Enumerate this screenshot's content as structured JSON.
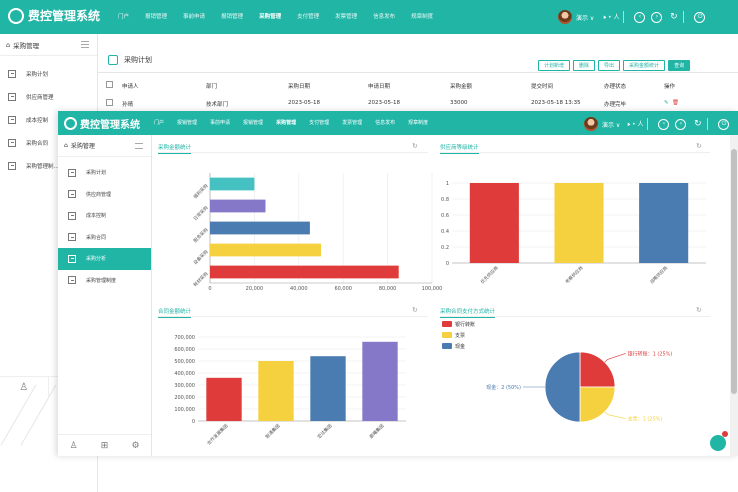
{
  "app": {
    "title": "费控管理系统"
  },
  "nav": [
    "门户",
    "报销管理",
    "事前申请",
    "报销管理",
    "采购管理",
    "支付管理",
    "发票管理",
    "信息发布",
    "规章制度"
  ],
  "nav_active_index": 4,
  "user": {
    "name": "演示",
    "text": "演示 ∨",
    "speaker": "🕩 • 人"
  },
  "bg": {
    "sidebar_head": "采购管理",
    "sidebar_items": [
      "采购计划",
      "供应商管理",
      "成本控制",
      "采购合同",
      "采购管理制..."
    ],
    "page_title": "采购计划",
    "toolbar": [
      "计划新增",
      "删除",
      "导出",
      "采购金额统计",
      "查询"
    ],
    "table_headers": [
      "申请人",
      "部门",
      "采购日期",
      "申请日期",
      "采购金额",
      "提交时间",
      "办理状态",
      "操作"
    ],
    "row": [
      "孙晴",
      "技术部门",
      "2023-05-18",
      "2023-05-18",
      "33000",
      "2023-05-18 13:35",
      "办理完毕"
    ]
  },
  "fg": {
    "sidebar_head": "采购管理",
    "sidebar_items": [
      "采购计划",
      "供应商管理",
      "成本控制",
      "采购合同",
      "采购分析",
      "采购管理制度"
    ],
    "sidebar_active_index": 4,
    "panels": [
      "采购金额统计",
      "供应商等级统计",
      "合同金额统计",
      "采购合同支付方式统计"
    ]
  },
  "colors": {
    "accent": "#21b5a6",
    "red": "#e03b3b",
    "yellow": "#f6d13f",
    "blue": "#4a7cb2",
    "purple": "#8678c8",
    "teal": "#46c1c1"
  },
  "chart_data": [
    {
      "type": "bar",
      "orientation": "horizontal",
      "title": "采购金额统计",
      "categories": [
        "耗材采购",
        "设备采购",
        "服务采购",
        "日常采购",
        "福利采购"
      ],
      "values": [
        85000,
        50000,
        45000,
        25000,
        20000
      ],
      "colors": [
        "#e03b3b",
        "#f6d13f",
        "#4a7cb2",
        "#8678c8",
        "#46c1c1"
      ],
      "xlim": [
        0,
        100000
      ],
      "xticks": [
        "0",
        "20,000",
        "40,000",
        "60,000",
        "80,000",
        "100,000"
      ]
    },
    {
      "type": "bar",
      "title": "供应商等级统计",
      "categories": [
        "优先供应商",
        "考察供应商",
        "战略供应商"
      ],
      "values": [
        1,
        1,
        1
      ],
      "colors": [
        "#e03b3b",
        "#f6d13f",
        "#4a7cb2"
      ],
      "ylim": [
        0,
        1
      ],
      "yticks": [
        "0",
        "0.2",
        "0.4",
        "0.6",
        "0.8",
        "1"
      ]
    },
    {
      "type": "bar",
      "title": "合同金额统计",
      "categories": [
        "合作发展集团",
        "智通集团",
        "宏达集团",
        "晨曦集团"
      ],
      "values": [
        360000,
        500000,
        540000,
        660000
      ],
      "colors": [
        "#e03b3b",
        "#f6d13f",
        "#4a7cb2",
        "#8678c8"
      ],
      "ylim": [
        0,
        700000
      ],
      "yticks": [
        "0",
        "100,000",
        "200,000",
        "300,000",
        "400,000",
        "500,000",
        "600,000",
        "700,000"
      ]
    },
    {
      "type": "pie",
      "title": "采购合同支付方式统计",
      "legend": [
        "银行转账",
        "支票",
        "现金"
      ],
      "values": [
        1,
        1,
        2
      ],
      "colors": [
        "#e03b3b",
        "#f6d13f",
        "#4a7cb2"
      ],
      "labels": [
        "银行转账：1 (25%)",
        "支票：1 (25%)",
        "现金：2 (50%)"
      ]
    }
  ]
}
